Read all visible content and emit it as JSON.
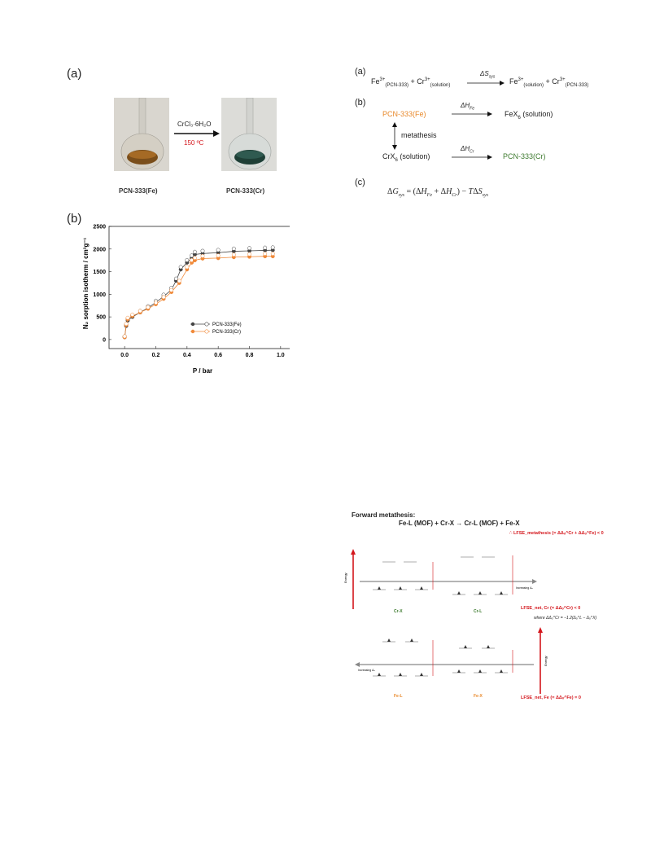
{
  "panel_a_left": {
    "label": "(a)",
    "reagent": "CrCl₃·6H₂O",
    "temperature": "150 ºC",
    "left_caption": "PCN-333(Fe)",
    "right_caption": "PCN-333(Cr)"
  },
  "panel_b_left": {
    "label": "(b)",
    "ylabel": "N₂ sorption isotherm / cm³g⁻¹",
    "xlabel": "P / bar",
    "xticks": [
      "0.0",
      "0.2",
      "0.4",
      "0.6",
      "0.8",
      "1.0"
    ],
    "yticks": [
      "0",
      "500",
      "1000",
      "1500",
      "2000",
      "2500"
    ],
    "legend": [
      "PCN-333(Fe)",
      "PCN-333(Cr)"
    ]
  },
  "chart_data": {
    "type": "line",
    "xlabel": "P / bar",
    "ylabel": "N2 sorption isotherm / cm3g-1",
    "xlim": [
      -0.1,
      1.1
    ],
    "ylim": [
      -200,
      2500
    ],
    "legend_position": "bottom-right",
    "series": [
      {
        "name": "PCN-333(Fe)",
        "color": "#444444",
        "x": [
          0.0,
          0.01,
          0.02,
          0.05,
          0.1,
          0.15,
          0.2,
          0.25,
          0.3,
          0.33,
          0.36,
          0.4,
          0.43,
          0.45,
          0.5,
          0.6,
          0.7,
          0.8,
          0.9,
          0.95
        ],
        "y": [
          50,
          300,
          420,
          500,
          600,
          700,
          820,
          950,
          1100,
          1300,
          1550,
          1700,
          1800,
          1880,
          1900,
          1920,
          1950,
          1960,
          1970,
          1975
        ]
      },
      {
        "name": "PCN-333(Cr)",
        "color": "#f08a3a",
        "x": [
          0.0,
          0.01,
          0.02,
          0.05,
          0.1,
          0.15,
          0.2,
          0.25,
          0.3,
          0.35,
          0.4,
          0.43,
          0.45,
          0.5,
          0.6,
          0.7,
          0.8,
          0.9,
          0.95
        ],
        "y": [
          50,
          320,
          450,
          520,
          600,
          680,
          780,
          900,
          1050,
          1250,
          1550,
          1700,
          1750,
          1790,
          1800,
          1820,
          1830,
          1840,
          1840
        ]
      }
    ]
  },
  "scheme": {
    "a_label": "(a)",
    "b_label": "(b)",
    "c_label": "(c)",
    "a_eq": "Fe³⁺(PCN-333) + Cr³⁺(solution) → Fe³⁺(solution) + Cr³⁺(PCN-333)",
    "a_arrow": "ΔS_sys",
    "b_fe": "PCN-333(Fe)",
    "b_fe_h": "ΔH_Fe",
    "b_fex": "FeX₆ (solution)",
    "b_metathesis": "metathesis",
    "b_crx": "CrX₆ (solution)",
    "b_cr_h": "ΔH_Cr",
    "b_cr": "PCN-333(Cr)",
    "c_eq": "ΔG_sys = (ΔH_Fe + ΔH_Cr) − TΔS_sys"
  },
  "lfse": {
    "title": "Forward metathesis:",
    "reaction": "Fe-L (MOF)  +  Cr-X   →   Cr-L (MOF)  +  Fe-X",
    "metathesis_lfse": "∴ LFSE_metathesis (= ΔΔₒ^Cr + ΔΔₒ^Fe) < 0",
    "energy": "Energy",
    "increasing": "Increasing Δₒ",
    "cr_x": "Cr-X",
    "cr_l": "Cr-L",
    "fe_l": "Fe-L",
    "fe_x": "Fe-X",
    "cr_lfse": "LFSE_net, Cr (= ΔΔₒ^Cr) < 0",
    "where": "where ΔΔₒ^Cr = −1.2(Δₒ^L − Δₒ^X)",
    "fe_lfse": "LFSE_net, Fe (= ΔΔₒ^Fe) = 0"
  }
}
